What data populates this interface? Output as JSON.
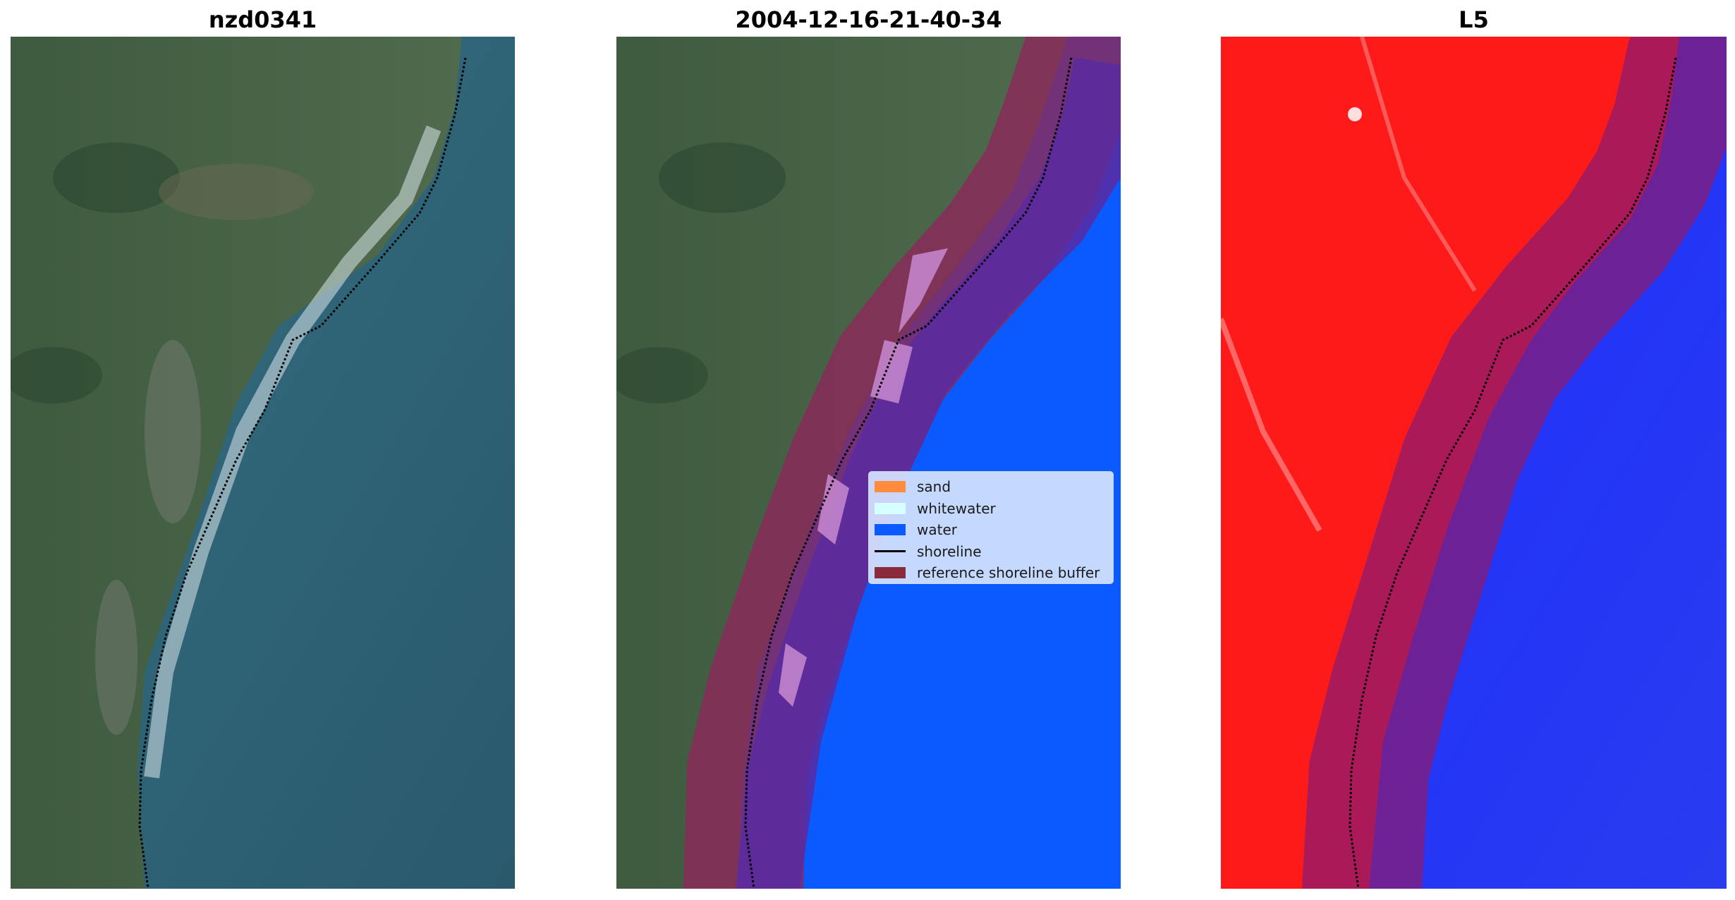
{
  "panels": [
    {
      "title": "nzd0341"
    },
    {
      "title": "2004-12-16-21-40-34"
    },
    {
      "title": "L5"
    }
  ],
  "legend": {
    "items": [
      {
        "label": "sand",
        "color": "#ff8c3c"
      },
      {
        "label": "whitewater",
        "color": "#d6ffff"
      },
      {
        "label": "water",
        "color": "#0a5aff"
      },
      {
        "label": "shoreline",
        "color": "#000000"
      },
      {
        "label": "reference shoreline buffer",
        "color": "#8b2a3a"
      }
    ]
  }
}
